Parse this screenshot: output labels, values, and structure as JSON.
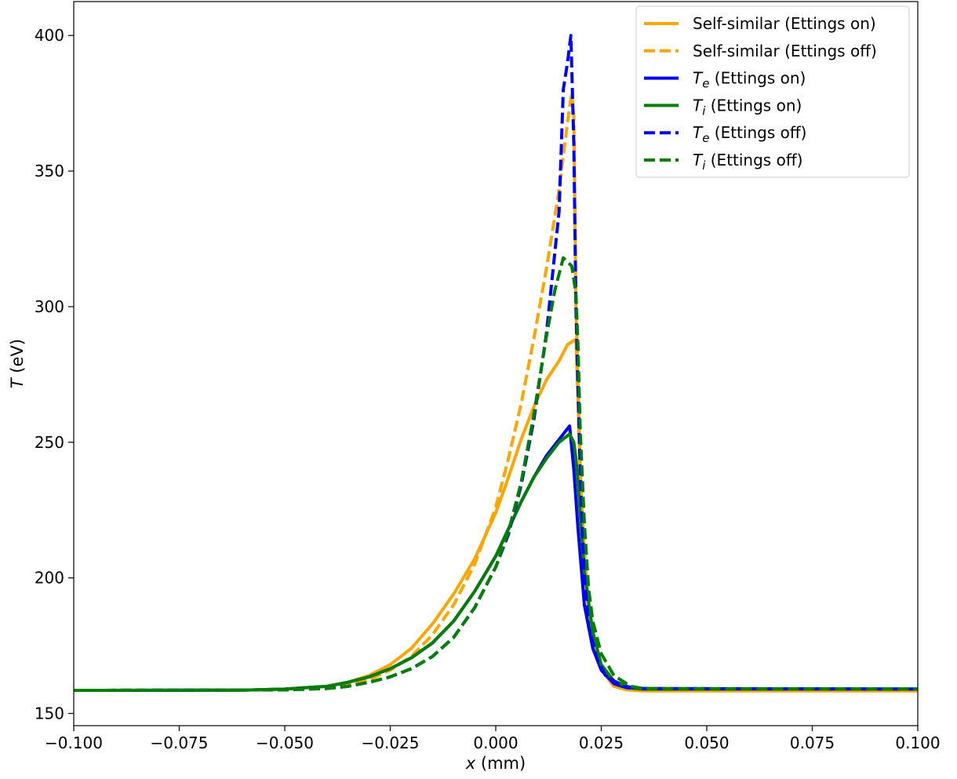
{
  "chart_data": {
    "type": "line",
    "title": "",
    "xlabel": {
      "var": "x",
      "unit": " (mm)"
    },
    "ylabel": {
      "var": "T",
      "unit": " (eV)"
    },
    "xlim": [
      -0.1,
      0.1
    ],
    "ylim": [
      145.5,
      412.5
    ],
    "xticks": [
      -0.1,
      -0.075,
      -0.05,
      -0.025,
      0.0,
      0.025,
      0.05,
      0.075,
      0.1
    ],
    "xtick_labels": [
      "−0.100",
      "−0.075",
      "−0.050",
      "−0.025",
      "0.000",
      "0.025",
      "0.050",
      "0.075",
      "0.100"
    ],
    "yticks": [
      150,
      200,
      250,
      300,
      350,
      400
    ],
    "ytick_labels": [
      "150",
      "200",
      "250",
      "300",
      "350",
      "400"
    ],
    "grid": false,
    "legend_position": "top-right",
    "series": [
      {
        "name": "Self-similar (Ettings on)",
        "sym": "",
        "sub": "",
        "rest": "Self-similar (Ettings on)",
        "color": "#FFA500",
        "dash": "solid",
        "points": [
          [
            -0.1,
            158.5
          ],
          [
            -0.06,
            158.6
          ],
          [
            -0.05,
            159
          ],
          [
            -0.04,
            160
          ],
          [
            -0.035,
            161.5
          ],
          [
            -0.03,
            164
          ],
          [
            -0.025,
            168
          ],
          [
            -0.02,
            174
          ],
          [
            -0.015,
            183
          ],
          [
            -0.01,
            194
          ],
          [
            -0.005,
            207
          ],
          [
            0,
            224
          ],
          [
            0.003,
            237
          ],
          [
            0.006,
            251
          ],
          [
            0.009,
            263
          ],
          [
            0.012,
            273
          ],
          [
            0.015,
            280
          ],
          [
            0.017,
            286
          ],
          [
            0.019,
            288
          ],
          [
            0.0195,
            265
          ],
          [
            0.02,
            238
          ],
          [
            0.021,
            210
          ],
          [
            0.022,
            190
          ],
          [
            0.023,
            177
          ],
          [
            0.025,
            166
          ],
          [
            0.028,
            160
          ],
          [
            0.031,
            158.7
          ],
          [
            0.035,
            158.3
          ],
          [
            0.1,
            158.3
          ]
        ]
      },
      {
        "name": "Self-similar (Ettings off)",
        "sym": "",
        "sub": "",
        "rest": "Self-similar (Ettings off)",
        "color": "#FFA500",
        "dash": "dashed",
        "points": [
          [
            -0.1,
            158.5
          ],
          [
            -0.05,
            158.7
          ],
          [
            -0.04,
            159.5
          ],
          [
            -0.035,
            160.5
          ],
          [
            -0.03,
            162.5
          ],
          [
            -0.025,
            166
          ],
          [
            -0.02,
            171
          ],
          [
            -0.015,
            179
          ],
          [
            -0.01,
            190
          ],
          [
            -0.005,
            205
          ],
          [
            0,
            226
          ],
          [
            0.003,
            244
          ],
          [
            0.006,
            264
          ],
          [
            0.009,
            288
          ],
          [
            0.012,
            314
          ],
          [
            0.015,
            343
          ],
          [
            0.017,
            368
          ],
          [
            0.018,
            379
          ],
          [
            0.0185,
            370
          ],
          [
            0.019,
            300
          ],
          [
            0.02,
            240
          ],
          [
            0.021,
            205
          ],
          [
            0.022,
            187
          ],
          [
            0.023,
            175
          ],
          [
            0.025,
            166
          ],
          [
            0.028,
            161
          ],
          [
            0.032,
            159
          ],
          [
            0.035,
            158.6
          ],
          [
            0.1,
            158.6
          ]
        ]
      },
      {
        "name": "Te (Ettings on)",
        "sym": "T",
        "sub": "e",
        "rest": " (Ettings on)",
        "color": "#0000FF",
        "dash": "solid",
        "points": [
          [
            -0.1,
            158.5
          ],
          [
            -0.06,
            158.6
          ],
          [
            -0.05,
            159
          ],
          [
            -0.04,
            160
          ],
          [
            -0.035,
            161.5
          ],
          [
            -0.03,
            163.5
          ],
          [
            -0.025,
            166.5
          ],
          [
            -0.02,
            170.5
          ],
          [
            -0.015,
            176
          ],
          [
            -0.01,
            184
          ],
          [
            -0.005,
            195
          ],
          [
            0,
            208
          ],
          [
            0.003,
            218
          ],
          [
            0.006,
            228
          ],
          [
            0.009,
            237
          ],
          [
            0.012,
            245
          ],
          [
            0.015,
            251
          ],
          [
            0.0175,
            256
          ],
          [
            0.0185,
            240
          ],
          [
            0.0195,
            218
          ],
          [
            0.021,
            190
          ],
          [
            0.023,
            174
          ],
          [
            0.025,
            166
          ],
          [
            0.028,
            161
          ],
          [
            0.031,
            159.5
          ],
          [
            0.035,
            159
          ],
          [
            0.1,
            159
          ]
        ]
      },
      {
        "name": "Ti (Ettings on)",
        "sym": "T",
        "sub": "i",
        "rest": " (Ettings on)",
        "color": "#008000",
        "dash": "solid",
        "points": [
          [
            -0.1,
            158.5
          ],
          [
            -0.06,
            158.6
          ],
          [
            -0.05,
            159
          ],
          [
            -0.04,
            160
          ],
          [
            -0.035,
            161.5
          ],
          [
            -0.03,
            163.5
          ],
          [
            -0.025,
            166.5
          ],
          [
            -0.02,
            170.5
          ],
          [
            -0.015,
            176
          ],
          [
            -0.01,
            184
          ],
          [
            -0.005,
            195
          ],
          [
            0,
            208
          ],
          [
            0.003,
            218
          ],
          [
            0.006,
            228
          ],
          [
            0.009,
            237
          ],
          [
            0.012,
            244
          ],
          [
            0.015,
            250
          ],
          [
            0.0175,
            253
          ],
          [
            0.0185,
            250
          ],
          [
            0.019,
            244
          ],
          [
            0.0195,
            235
          ],
          [
            0.021,
            202
          ],
          [
            0.023,
            180
          ],
          [
            0.025,
            168
          ],
          [
            0.028,
            162
          ],
          [
            0.032,
            159.5
          ],
          [
            0.035,
            159
          ],
          [
            0.1,
            159
          ]
        ]
      },
      {
        "name": "Te (Ettings off)",
        "sym": "T",
        "sub": "e",
        "rest": " (Ettings off)",
        "color": "#0000FF",
        "dash": "dashed",
        "points": [
          [
            -0.1,
            158.5
          ],
          [
            -0.05,
            158.7
          ],
          [
            -0.04,
            159.2
          ],
          [
            -0.035,
            160
          ],
          [
            -0.03,
            161.5
          ],
          [
            -0.025,
            163.5
          ],
          [
            -0.02,
            166.5
          ],
          [
            -0.015,
            171
          ],
          [
            -0.01,
            178
          ],
          [
            -0.005,
            189
          ],
          [
            0,
            204
          ],
          [
            0.003,
            216
          ],
          [
            0.006,
            234
          ],
          [
            0.009,
            258
          ],
          [
            0.012,
            290
          ],
          [
            0.015,
            335
          ],
          [
            0.016,
            380
          ],
          [
            0.017,
            390
          ],
          [
            0.0178,
            400
          ],
          [
            0.0185,
            360
          ],
          [
            0.019,
            300
          ],
          [
            0.02,
            240
          ],
          [
            0.021,
            200
          ],
          [
            0.022,
            182
          ],
          [
            0.024,
            170
          ],
          [
            0.026,
            164
          ],
          [
            0.03,
            160
          ],
          [
            0.035,
            159.2
          ],
          [
            0.1,
            159
          ]
        ]
      },
      {
        "name": "Ti (Ettings off)",
        "sym": "T",
        "sub": "i",
        "rest": " (Ettings off)",
        "color": "#008000",
        "dash": "dashed",
        "points": [
          [
            -0.1,
            158.5
          ],
          [
            -0.05,
            158.7
          ],
          [
            -0.04,
            159.2
          ],
          [
            -0.035,
            160
          ],
          [
            -0.03,
            161.5
          ],
          [
            -0.025,
            163.5
          ],
          [
            -0.02,
            166.5
          ],
          [
            -0.015,
            171
          ],
          [
            -0.01,
            178
          ],
          [
            -0.005,
            189
          ],
          [
            0,
            204
          ],
          [
            0.003,
            217
          ],
          [
            0.006,
            235
          ],
          [
            0.009,
            260
          ],
          [
            0.012,
            289
          ],
          [
            0.014,
            306
          ],
          [
            0.016,
            318
          ],
          [
            0.018,
            315
          ],
          [
            0.019,
            305
          ],
          [
            0.0195,
            285
          ],
          [
            0.02,
            255
          ],
          [
            0.021,
            220
          ],
          [
            0.022,
            196
          ],
          [
            0.023,
            184
          ],
          [
            0.025,
            172
          ],
          [
            0.028,
            164
          ],
          [
            0.032,
            160
          ],
          [
            0.035,
            159.2
          ],
          [
            0.1,
            159
          ]
        ]
      }
    ]
  }
}
